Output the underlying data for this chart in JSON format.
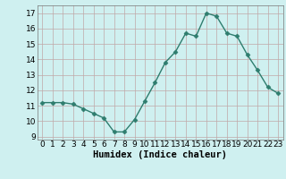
{
  "x": [
    0,
    1,
    2,
    3,
    4,
    5,
    6,
    7,
    8,
    9,
    10,
    11,
    12,
    13,
    14,
    15,
    16,
    17,
    18,
    19,
    20,
    21,
    22,
    23
  ],
  "y": [
    11.2,
    11.2,
    11.2,
    11.1,
    10.8,
    10.5,
    10.2,
    9.3,
    9.3,
    10.1,
    11.3,
    12.5,
    13.8,
    14.5,
    15.7,
    15.5,
    17.0,
    16.8,
    15.7,
    15.5,
    14.3,
    13.3,
    12.2,
    11.8
  ],
  "line_color": "#2e7d6e",
  "marker": "D",
  "marker_size": 2.5,
  "bg_color": "#cff0f0",
  "grid_color": "#c0a8a8",
  "xlabel": "Humidex (Indice chaleur)",
  "xlim": [
    -0.5,
    23.5
  ],
  "ylim": [
    8.8,
    17.5
  ],
  "yticks": [
    9,
    10,
    11,
    12,
    13,
    14,
    15,
    16,
    17
  ],
  "xticks": [
    0,
    1,
    2,
    3,
    4,
    5,
    6,
    7,
    8,
    9,
    10,
    11,
    12,
    13,
    14,
    15,
    16,
    17,
    18,
    19,
    20,
    21,
    22,
    23
  ],
  "xlabel_fontsize": 7.5,
  "tick_fontsize": 6.5,
  "line_width": 1.0
}
